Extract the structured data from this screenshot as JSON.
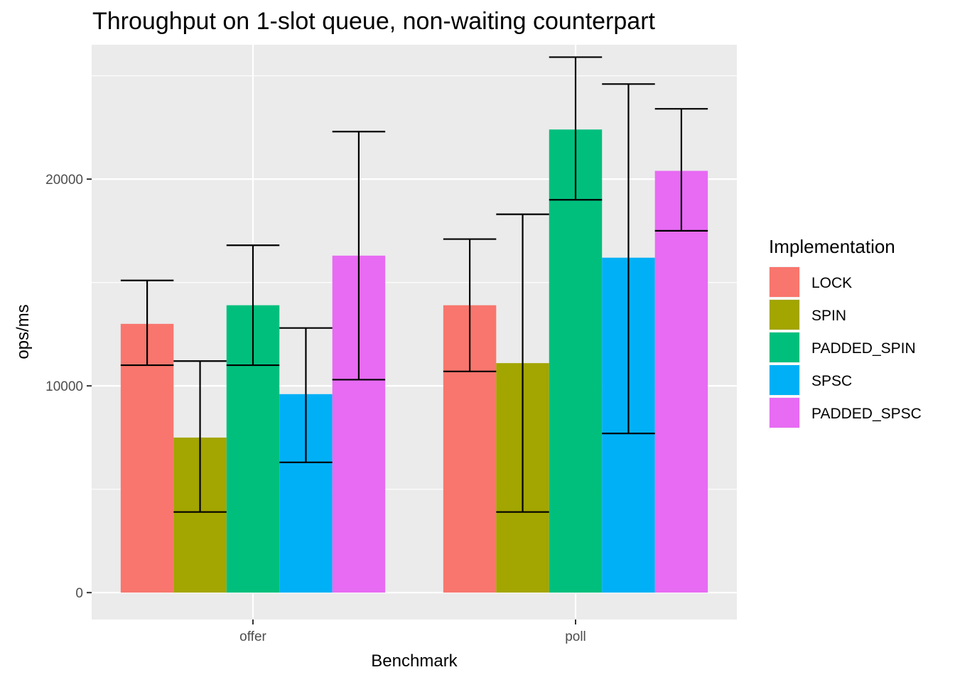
{
  "chart_data": {
    "type": "bar",
    "title": "Throughput on 1-slot queue, non-waiting counterpart",
    "xlabel": "Benchmark",
    "ylabel": "ops/ms",
    "categories": [
      "offer",
      "poll"
    ],
    "ylim": [
      -1300,
      26500
    ],
    "yticks": [
      0,
      10000,
      20000
    ],
    "ytick_labels": [
      "0",
      "10000",
      "20000"
    ],
    "grid": true,
    "legend": {
      "title": "Implementation",
      "position": "right"
    },
    "series": [
      {
        "name": "LOCK",
        "color": "#F8766D",
        "values": [
          13000,
          13900
        ],
        "err_low": [
          11000,
          10700
        ],
        "err_high": [
          15100,
          17100
        ]
      },
      {
        "name": "SPIN",
        "color": "#A3A500",
        "values": [
          7500,
          11100
        ],
        "err_low": [
          3900,
          3900
        ],
        "err_high": [
          11200,
          18300
        ]
      },
      {
        "name": "PADDED_SPIN",
        "color": "#00BF7D",
        "values": [
          13900,
          22400
        ],
        "err_low": [
          11000,
          19000
        ],
        "err_high": [
          16800,
          25900
        ]
      },
      {
        "name": "SPSC",
        "color": "#00B0F6",
        "values": [
          9600,
          16200
        ],
        "err_low": [
          6300,
          7700
        ],
        "err_high": [
          12800,
          24600
        ]
      },
      {
        "name": "PADDED_SPSC",
        "color": "#E76BF3",
        "values": [
          16300,
          20400
        ],
        "err_low": [
          10300,
          17500
        ],
        "err_high": [
          22300,
          23400
        ]
      }
    ]
  }
}
